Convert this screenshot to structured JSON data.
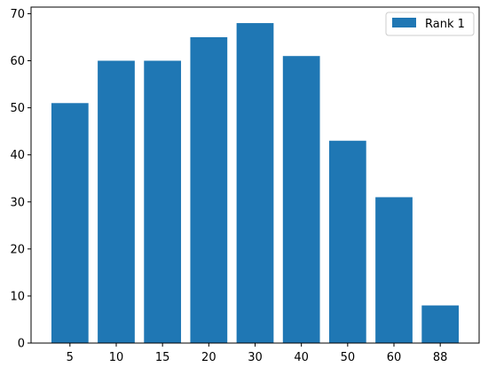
{
  "chart_data": {
    "type": "bar",
    "categories": [
      "5",
      "10",
      "15",
      "20",
      "30",
      "40",
      "50",
      "60",
      "88"
    ],
    "series": [
      {
        "name": "Rank 1",
        "values": [
          51,
          60,
          60,
          65,
          68,
          61,
          43,
          31,
          8
        ],
        "color": "#1f77b4"
      }
    ],
    "title": "",
    "xlabel": "",
    "ylabel": "",
    "ylim": [
      0,
      71.4
    ],
    "yticks": [
      0,
      10,
      20,
      30,
      40,
      50,
      60,
      70
    ],
    "grid": false,
    "legend_position": "top-right"
  }
}
